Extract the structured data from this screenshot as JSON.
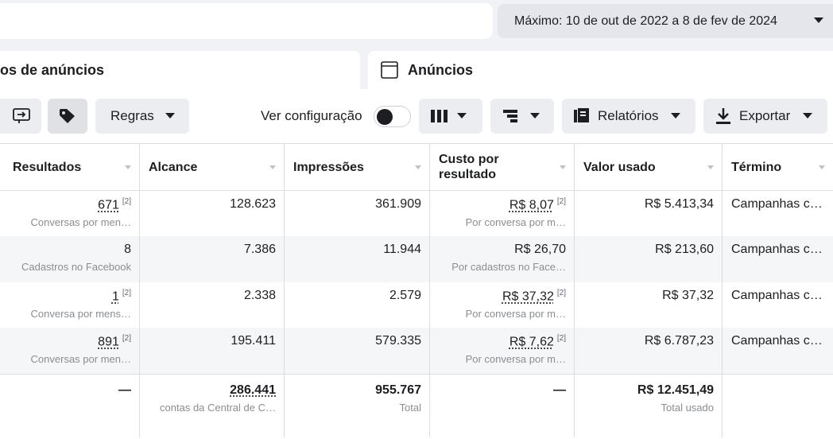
{
  "date_range": "Máximo: 10 de out de 2022 a 8 de fev de 2024",
  "tabs": [
    "os de anúncios",
    "Anúncios"
  ],
  "toolbar": {
    "rules": "Regras",
    "view_setting": "Ver configuração",
    "reports": "Relatórios",
    "export": "Exportar"
  },
  "table": {
    "columns": [
      "Resultados",
      "Alcance",
      "Impressões",
      "Custo por resultado",
      "Valor usado",
      "Término"
    ],
    "rows": [
      [
        {
          "main": "671",
          "note": "[2]",
          "sub": "Conversas por men…"
        },
        {
          "main": "128.623"
        },
        {
          "main": "361.909"
        },
        {
          "main": "R$ 8,07",
          "note": "[2]",
          "sub": "Por conversa por m…"
        },
        {
          "main": "R$ 5.413,34"
        },
        {
          "main": "Campanhas c…"
        }
      ],
      [
        {
          "main": "8",
          "sub": "Cadastros no Facebook"
        },
        {
          "main": "7.386"
        },
        {
          "main": "11.944"
        },
        {
          "main": "R$ 26,70",
          "sub": "Por cadastros no Face…"
        },
        {
          "main": "R$ 213,60"
        },
        {
          "main": "Campanhas c…"
        }
      ],
      [
        {
          "main": "1",
          "note": "[2]",
          "sub": "Conversa por mens…"
        },
        {
          "main": "2.338"
        },
        {
          "main": "2.579"
        },
        {
          "main": "R$ 37,32",
          "note": "[2]",
          "sub": "Por conversa por m…"
        },
        {
          "main": "R$ 37,32"
        },
        {
          "main": "Campanhas c…"
        }
      ],
      [
        {
          "main": "891",
          "note": "[2]",
          "sub": "Conversas por men…"
        },
        {
          "main": "195.411"
        },
        {
          "main": "579.335"
        },
        {
          "main": "R$ 7,62",
          "note": "[2]",
          "sub": "Por conversa por m…"
        },
        {
          "main": "R$ 6.787,23"
        },
        {
          "main": "Campanhas c…"
        }
      ]
    ],
    "total": [
      {
        "main": "—"
      },
      {
        "main": "286.441",
        "underline": true,
        "sub": "contas da Central de C…"
      },
      {
        "main": "955.767",
        "sub": "Total"
      },
      {
        "main": "—"
      },
      {
        "main": "R$ 12.451,49",
        "sub": "Total usado"
      },
      null
    ]
  }
}
